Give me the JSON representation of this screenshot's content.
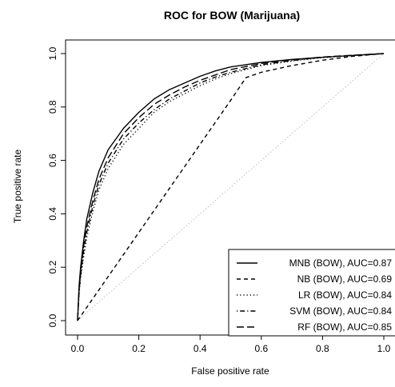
{
  "chart_data": {
    "type": "line",
    "title": "ROC for BOW (Marijuana)",
    "xlabel": "False positive rate",
    "ylabel": "True positive rate",
    "xlim": [
      0,
      1
    ],
    "ylim": [
      0,
      1
    ],
    "x_ticks": [
      "0.0",
      "0.2",
      "0.4",
      "0.6",
      "0.8",
      "1.0"
    ],
    "y_ticks": [
      "0.0",
      "0.2",
      "0.4",
      "0.6",
      "0.8",
      "1.0"
    ],
    "grid": false,
    "legend_position": "bottom-right",
    "diagonal_reference": true,
    "series": [
      {
        "name": "MNB (BOW), AUC=0.87",
        "linestyle": "solid",
        "points": [
          [
            0,
            0
          ],
          [
            0.005,
            0.13
          ],
          [
            0.01,
            0.2
          ],
          [
            0.02,
            0.3
          ],
          [
            0.03,
            0.38
          ],
          [
            0.05,
            0.48
          ],
          [
            0.07,
            0.56
          ],
          [
            0.1,
            0.64
          ],
          [
            0.15,
            0.72
          ],
          [
            0.2,
            0.78
          ],
          [
            0.25,
            0.83
          ],
          [
            0.3,
            0.865
          ],
          [
            0.35,
            0.89
          ],
          [
            0.4,
            0.915
          ],
          [
            0.45,
            0.935
          ],
          [
            0.5,
            0.95
          ],
          [
            0.6,
            0.967
          ],
          [
            0.7,
            0.978
          ],
          [
            0.8,
            0.986
          ],
          [
            0.9,
            0.993
          ],
          [
            1,
            1
          ]
        ]
      },
      {
        "name": "NB (BOW), AUC=0.69",
        "linestyle": "dashed",
        "points": [
          [
            0,
            0
          ],
          [
            0.1,
            0.165
          ],
          [
            0.2,
            0.33
          ],
          [
            0.3,
            0.495
          ],
          [
            0.4,
            0.66
          ],
          [
            0.5,
            0.825
          ],
          [
            0.55,
            0.91
          ],
          [
            0.6,
            0.93
          ],
          [
            0.7,
            0.955
          ],
          [
            0.8,
            0.975
          ],
          [
            0.9,
            0.99
          ],
          [
            1,
            1
          ]
        ]
      },
      {
        "name": "LR (BOW), AUC=0.84",
        "linestyle": "dotted",
        "points": [
          [
            0,
            0
          ],
          [
            0.005,
            0.1
          ],
          [
            0.01,
            0.16
          ],
          [
            0.02,
            0.24
          ],
          [
            0.03,
            0.31
          ],
          [
            0.05,
            0.41
          ],
          [
            0.07,
            0.49
          ],
          [
            0.1,
            0.57
          ],
          [
            0.15,
            0.66
          ],
          [
            0.2,
            0.72
          ],
          [
            0.25,
            0.78
          ],
          [
            0.3,
            0.82
          ],
          [
            0.35,
            0.85
          ],
          [
            0.4,
            0.88
          ],
          [
            0.45,
            0.905
          ],
          [
            0.5,
            0.925
          ],
          [
            0.6,
            0.955
          ],
          [
            0.7,
            0.972
          ],
          [
            0.8,
            0.985
          ],
          [
            0.9,
            0.993
          ],
          [
            1,
            1
          ]
        ]
      },
      {
        "name": "SVM (BOW), AUC=0.84",
        "linestyle": "dotdash",
        "points": [
          [
            0,
            0
          ],
          [
            0.005,
            0.11
          ],
          [
            0.01,
            0.17
          ],
          [
            0.02,
            0.26
          ],
          [
            0.03,
            0.33
          ],
          [
            0.05,
            0.43
          ],
          [
            0.07,
            0.51
          ],
          [
            0.1,
            0.59
          ],
          [
            0.15,
            0.68
          ],
          [
            0.2,
            0.74
          ],
          [
            0.25,
            0.79
          ],
          [
            0.3,
            0.83
          ],
          [
            0.35,
            0.86
          ],
          [
            0.4,
            0.89
          ],
          [
            0.45,
            0.912
          ],
          [
            0.5,
            0.93
          ],
          [
            0.6,
            0.958
          ],
          [
            0.7,
            0.974
          ],
          [
            0.8,
            0.986
          ],
          [
            0.9,
            0.993
          ],
          [
            1,
            1
          ]
        ]
      },
      {
        "name": "RF (BOW), AUC=0.85",
        "linestyle": "longdash",
        "points": [
          [
            0,
            0
          ],
          [
            0.005,
            0.12
          ],
          [
            0.01,
            0.18
          ],
          [
            0.02,
            0.28
          ],
          [
            0.03,
            0.35
          ],
          [
            0.05,
            0.45
          ],
          [
            0.07,
            0.53
          ],
          [
            0.1,
            0.61
          ],
          [
            0.15,
            0.7
          ],
          [
            0.2,
            0.76
          ],
          [
            0.25,
            0.81
          ],
          [
            0.3,
            0.845
          ],
          [
            0.35,
            0.875
          ],
          [
            0.4,
            0.9
          ],
          [
            0.45,
            0.92
          ],
          [
            0.5,
            0.94
          ],
          [
            0.6,
            0.963
          ],
          [
            0.7,
            0.977
          ],
          [
            0.8,
            0.987
          ],
          [
            0.9,
            0.994
          ],
          [
            1,
            1
          ]
        ]
      }
    ]
  }
}
